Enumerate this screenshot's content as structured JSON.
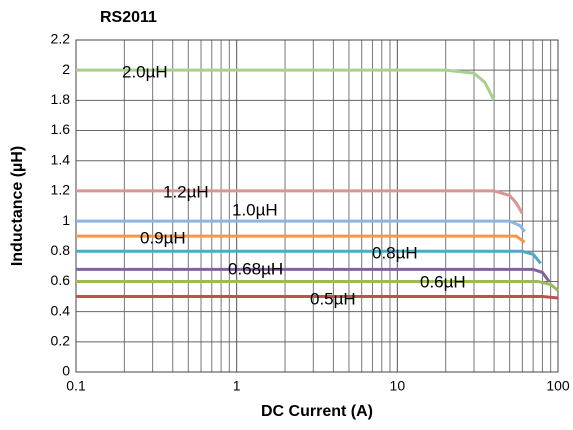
{
  "chart_data": {
    "type": "line",
    "title": "RS2011",
    "x_label": "DC Current (A)",
    "y_label": "Inductance (µH)",
    "xscale": "log",
    "xlim": [
      0.1,
      100
    ],
    "xticks": [
      0.1,
      1,
      10,
      100
    ],
    "ylim": [
      0,
      2.2
    ],
    "yticks": [
      0,
      0.2,
      0.4,
      0.6,
      0.8,
      1,
      1.2,
      1.4,
      1.6,
      1.8,
      2,
      2.2
    ],
    "grid": true,
    "minor_grid": true,
    "series": [
      {
        "name": "2.0µH",
        "color": "#a9d18e",
        "x": [
          0.1,
          10,
          20,
          30,
          35,
          40
        ],
        "values": [
          2.0,
          2.0,
          2.0,
          1.98,
          1.92,
          1.8
        ]
      },
      {
        "name": "1.2µH",
        "color": "#d99694",
        "x": [
          0.1,
          40,
          50,
          55,
          60
        ],
        "values": [
          1.2,
          1.2,
          1.17,
          1.12,
          1.05
        ]
      },
      {
        "name": "1.0µH",
        "color": "#8eb4e3",
        "x": [
          0.1,
          50,
          58,
          62
        ],
        "values": [
          1.0,
          1.0,
          0.97,
          0.93
        ]
      },
      {
        "name": "0.9µH",
        "color": "#f79646",
        "x": [
          0.1,
          55,
          62
        ],
        "values": [
          0.9,
          0.9,
          0.86
        ]
      },
      {
        "name": "0.8µH",
        "color": "#4bacc6",
        "x": [
          0.1,
          60,
          70,
          78
        ],
        "values": [
          0.8,
          0.8,
          0.78,
          0.72
        ]
      },
      {
        "name": "0.68µH",
        "color": "#8064a2",
        "x": [
          0.1,
          70,
          80,
          88
        ],
        "values": [
          0.68,
          0.68,
          0.66,
          0.6
        ]
      },
      {
        "name": "0.6µH",
        "color": "#9bbb59",
        "x": [
          0.1,
          75,
          90,
          100
        ],
        "values": [
          0.6,
          0.6,
          0.58,
          0.54
        ]
      },
      {
        "name": "0.5µH",
        "color": "#c0504d",
        "x": [
          0.1,
          80,
          100
        ],
        "values": [
          0.5,
          0.5,
          0.49
        ]
      }
    ]
  }
}
